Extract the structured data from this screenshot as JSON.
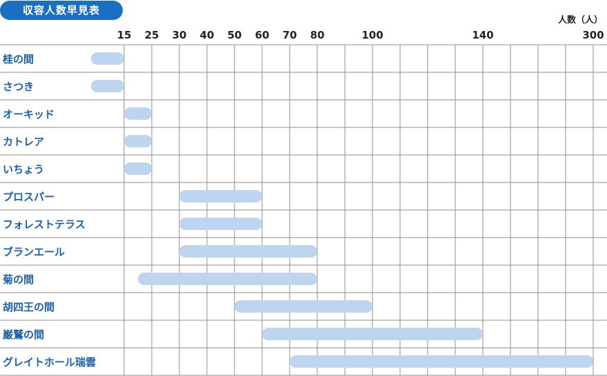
{
  "header": {
    "title": "収容人数早見表",
    "unit": "人数（人）"
  },
  "chart_data": {
    "type": "bar",
    "title": "収容人数早見表",
    "ylabel": "人数（人）",
    "ticks": [
      15,
      25,
      30,
      40,
      50,
      60,
      70,
      80,
      100,
      140,
      300
    ],
    "categories": [
      "桂の間",
      "さつき",
      "オーキッド",
      "カトレア",
      "いちょう",
      "プロスパー",
      "フォレストテラス",
      "ブランエール",
      "菊の間",
      "胡四王の間",
      "巌鷲の間",
      "グレイトホール瑞雲"
    ],
    "ranges": [
      [
        3,
        15
      ],
      [
        3,
        15
      ],
      [
        15,
        25
      ],
      [
        15,
        25
      ],
      [
        15,
        25
      ],
      [
        30,
        60
      ],
      [
        30,
        60
      ],
      [
        30,
        80
      ],
      [
        20,
        80
      ],
      [
        50,
        100
      ],
      [
        60,
        140
      ],
      [
        70,
        300
      ]
    ],
    "color": "#bed5f0"
  }
}
